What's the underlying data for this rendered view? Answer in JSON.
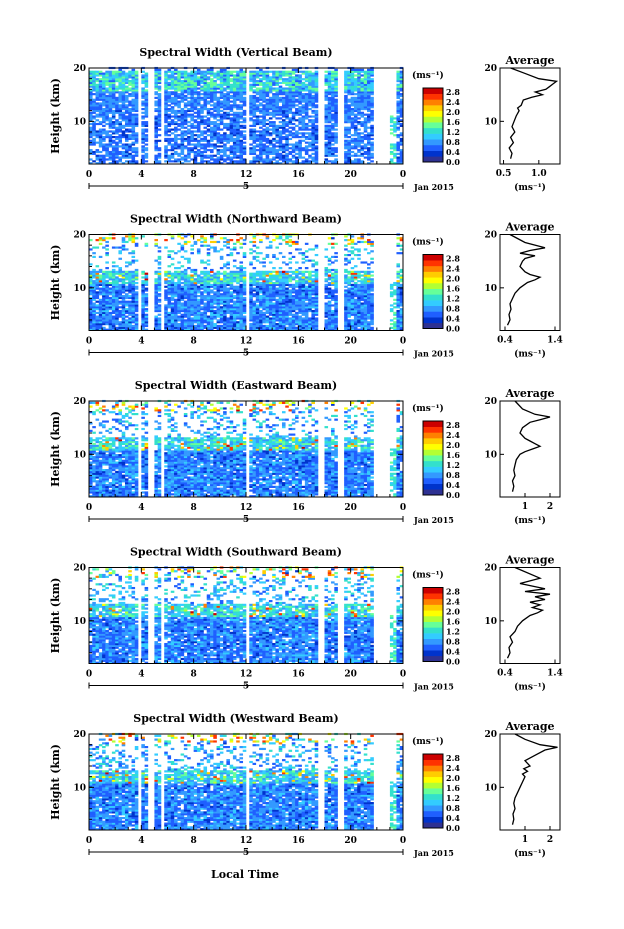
{
  "figure": {
    "xlabel": "Local Time",
    "date_label": "Jan 2015",
    "x_ticks": [
      "0",
      "4",
      "8",
      "12",
      "16",
      "20",
      "0"
    ],
    "day_marker": "5",
    "ylabel": "Height (km)",
    "y_ticks": [
      "20",
      "10"
    ],
    "colorbar_unit": "(ms⁻¹)",
    "colorbar_ticks": [
      "2.8",
      "2.4",
      "2.0",
      "1.6",
      "1.2",
      "0.8",
      "0.4",
      "0.0"
    ],
    "colorbar_colors": [
      "#2e3192",
      "#0033cc",
      "#1f5fff",
      "#3399ff",
      "#33ccff",
      "#33e0cc",
      "#66ff99",
      "#b3ff33",
      "#ffff00",
      "#ffcc00",
      "#ff8000",
      "#ff3300",
      "#cc0000"
    ],
    "average_title": "Average",
    "average_unit": "(ms⁻¹)"
  },
  "chart_data": [
    {
      "type": "heatmap",
      "title": "Spectral Width (Vertical Beam)",
      "xlim": [
        0,
        24
      ],
      "ylim": [
        2,
        20
      ],
      "data_gaps_hours": [
        [
          3.7,
          4.1
        ],
        [
          4.6,
          5.0
        ],
        [
          5.4,
          5.7
        ],
        [
          11.9,
          12.2
        ],
        [
          17.6,
          18.0
        ],
        [
          19.0,
          19.6
        ],
        [
          21.7,
          23.0
        ]
      ],
      "regime": "vertical",
      "average": {
        "type": "line",
        "xlim": [
          0.45,
          1.3
        ],
        "x_ticks": [
          "0.5",
          "1.0"
        ],
        "x": [
          0.6,
          0.62,
          0.58,
          0.64,
          0.6,
          0.66,
          0.62,
          0.65,
          0.68,
          0.72,
          0.7,
          0.75,
          0.78,
          0.9,
          1.05,
          0.95,
          1.1,
          1.15,
          1.2,
          1.25,
          1.0,
          0.8,
          0.6
        ],
        "y": [
          3,
          4,
          5,
          6,
          7,
          8,
          9,
          10,
          11,
          12,
          12.5,
          13,
          14,
          14.5,
          15,
          15.5,
          16,
          16.5,
          17,
          17.5,
          18,
          19,
          20
        ]
      }
    },
    {
      "type": "heatmap",
      "title": "Spectral Width (Northward Beam)",
      "xlim": [
        0,
        24
      ],
      "ylim": [
        2,
        20
      ],
      "data_gaps_hours": [
        [
          3.7,
          4.1
        ],
        [
          4.6,
          5.0
        ],
        [
          5.4,
          5.7
        ],
        [
          11.9,
          12.2
        ],
        [
          17.6,
          18.0
        ],
        [
          19.0,
          19.6
        ],
        [
          21.7,
          23.0
        ]
      ],
      "regime": "oblique",
      "average": {
        "type": "line",
        "xlim": [
          0.3,
          1.5
        ],
        "x_ticks": [
          "0.4",
          "1.4"
        ],
        "x": [
          0.45,
          0.5,
          0.48,
          0.52,
          0.5,
          0.55,
          0.6,
          0.7,
          0.85,
          1.0,
          1.1,
          0.9,
          0.8,
          0.7,
          0.75,
          0.8,
          1.0,
          0.7,
          0.9,
          1.2,
          0.8,
          0.5
        ],
        "y": [
          3,
          4,
          5,
          6,
          7,
          8,
          9,
          10,
          11,
          11.5,
          12,
          12.5,
          13,
          14,
          15,
          15.5,
          16,
          16.5,
          17,
          17.5,
          18.5,
          20
        ]
      }
    },
    {
      "type": "heatmap",
      "title": "Spectral Width (Eastward Beam)",
      "xlim": [
        0,
        24
      ],
      "ylim": [
        2,
        20
      ],
      "data_gaps_hours": [
        [
          3.7,
          4.1
        ],
        [
          4.6,
          5.0
        ],
        [
          5.4,
          5.7
        ],
        [
          11.9,
          12.2
        ],
        [
          17.6,
          18.0
        ],
        [
          19.0,
          19.6
        ],
        [
          21.7,
          23.0
        ]
      ],
      "regime": "oblique",
      "average": {
        "type": "line",
        "xlim": [
          0,
          2.4
        ],
        "x_ticks": [
          "1",
          "2"
        ],
        "x": [
          0.5,
          0.55,
          0.5,
          0.6,
          0.55,
          0.6,
          0.65,
          0.8,
          1.0,
          1.3,
          1.6,
          1.4,
          1.2,
          1.0,
          0.8,
          0.9,
          1.2,
          1.6,
          2.0,
          1.4,
          0.9,
          0.6
        ],
        "y": [
          3,
          4,
          5,
          6,
          7,
          8,
          9,
          10,
          10.5,
          11,
          11.5,
          12,
          12.5,
          13,
          14,
          15,
          16,
          16.5,
          17,
          17.5,
          18.5,
          20
        ]
      }
    },
    {
      "type": "heatmap",
      "title": "Spectral Width (Southward Beam)",
      "xlim": [
        0,
        24
      ],
      "ylim": [
        2,
        20
      ],
      "data_gaps_hours": [
        [
          3.7,
          4.1
        ],
        [
          4.6,
          5.0
        ],
        [
          5.4,
          5.7
        ],
        [
          11.9,
          12.2
        ],
        [
          17.6,
          18.0
        ],
        [
          19.0,
          19.6
        ],
        [
          21.7,
          23.0
        ]
      ],
      "regime": "oblique",
      "average": {
        "type": "line",
        "xlim": [
          0.3,
          1.5
        ],
        "x_ticks": [
          "0.4",
          "1.4"
        ],
        "x": [
          0.45,
          0.5,
          0.48,
          0.55,
          0.5,
          0.6,
          0.65,
          0.75,
          0.9,
          1.05,
          1.15,
          0.95,
          1.1,
          0.9,
          1.2,
          1.0,
          1.3,
          0.8,
          1.2,
          0.7,
          1.1,
          0.6
        ],
        "y": [
          3,
          4,
          5,
          6,
          7,
          8,
          9,
          10,
          11,
          11.5,
          12,
          12.5,
          13,
          13.5,
          14,
          14.5,
          15,
          15.5,
          16,
          17,
          18,
          20
        ]
      }
    },
    {
      "type": "heatmap",
      "title": "Spectral Width (Westward Beam)",
      "xlim": [
        0,
        24
      ],
      "ylim": [
        2,
        20
      ],
      "data_gaps_hours": [
        [
          3.7,
          4.1
        ],
        [
          4.6,
          5.0
        ],
        [
          5.4,
          5.7
        ],
        [
          11.9,
          12.2
        ],
        [
          17.6,
          18.0
        ],
        [
          19.0,
          19.6
        ],
        [
          21.7,
          23.0
        ]
      ],
      "regime": "oblique",
      "average": {
        "type": "line",
        "xlim": [
          0,
          2.4
        ],
        "x_ticks": [
          "1",
          "2"
        ],
        "x": [
          0.5,
          0.55,
          0.52,
          0.6,
          0.55,
          0.6,
          0.7,
          0.8,
          0.9,
          1.0,
          0.9,
          1.1,
          0.95,
          1.2,
          1.0,
          1.4,
          1.8,
          2.3,
          1.6,
          1.0,
          0.6
        ],
        "y": [
          3,
          4,
          5,
          6,
          7,
          8,
          9,
          10,
          11,
          12,
          12.5,
          13,
          13.5,
          14,
          15,
          16,
          17,
          17.5,
          18,
          19,
          20
        ]
      }
    }
  ]
}
